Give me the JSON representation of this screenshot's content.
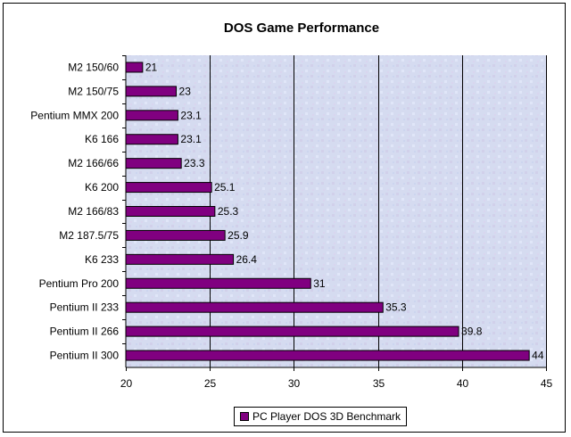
{
  "chart_data": {
    "type": "bar",
    "orientation": "horizontal",
    "title": "DOS Game Performance",
    "xlabel": "",
    "ylabel": "",
    "categories": [
      "M2 150/60",
      "M2 150/75",
      "Pentium MMX 200",
      "K6 166",
      "M2 166/66",
      "K6 200",
      "M2 166/83",
      "M2 187.5/75",
      "K6 233",
      "Pentium Pro 200",
      "Pentium II 233",
      "Pentium II 266",
      "Pentium II 300"
    ],
    "series": [
      {
        "name": "PC Player DOS 3D Benchmark",
        "values": [
          21,
          23,
          23.1,
          23.1,
          23.3,
          25.1,
          25.3,
          25.9,
          26.4,
          31,
          35.3,
          39.8,
          44
        ],
        "labels": [
          "21",
          "23",
          "23.1",
          "23.1",
          "23.3",
          "25.1",
          "25.3",
          "25.9",
          "26.4",
          "31",
          "35.3",
          "39.8",
          "44"
        ]
      }
    ],
    "xlim": [
      20,
      45
    ],
    "xticks": [
      "20",
      "25",
      "30",
      "35",
      "40",
      "45"
    ],
    "grid": "vertical major gridlines",
    "legend_position": "bottom",
    "colors": {
      "bar": "#800080",
      "plot_background": "#d6dcf2",
      "gridline": "#000000"
    }
  }
}
